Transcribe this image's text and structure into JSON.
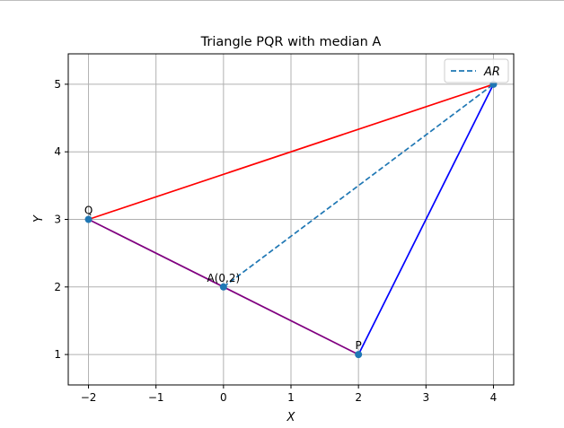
{
  "chart_data": {
    "type": "line",
    "title": "Triangle PQR with median A",
    "xlabel": "X",
    "ylabel": "Y",
    "xlim": [
      -2.3,
      4.3
    ],
    "ylim": [
      0.55,
      5.45
    ],
    "x_ticks": [
      -2,
      -1,
      0,
      1,
      2,
      3,
      4
    ],
    "y_ticks": [
      1,
      2,
      3,
      4,
      5
    ],
    "grid": true,
    "legend": {
      "placement": "top-right",
      "entries": [
        {
          "label": "AR",
          "style": "dashed",
          "color": "#1f77b4"
        }
      ]
    },
    "points": [
      {
        "label": "P",
        "x": 2,
        "y": 1
      },
      {
        "label": "Q",
        "x": -2,
        "y": 3
      },
      {
        "label": "R",
        "x": 4,
        "y": 5,
        "show_label": false
      },
      {
        "label": "A(0,2)",
        "x": 0,
        "y": 2
      }
    ],
    "segments": [
      {
        "name": "PR",
        "from": [
          2,
          1
        ],
        "to": [
          4,
          5
        ],
        "color": "#0000ff",
        "style": "solid"
      },
      {
        "name": "QR",
        "from": [
          -2,
          3
        ],
        "to": [
          4,
          5
        ],
        "color": "#ff0000",
        "style": "solid"
      },
      {
        "name": "QP",
        "from": [
          -2,
          3
        ],
        "to": [
          2,
          1
        ],
        "color": "#800080",
        "style": "solid"
      },
      {
        "name": "AR",
        "from": [
          0,
          2
        ],
        "to": [
          4,
          5
        ],
        "color": "#1f77b4",
        "style": "dashed"
      }
    ],
    "point_color": "#1f77b4"
  }
}
